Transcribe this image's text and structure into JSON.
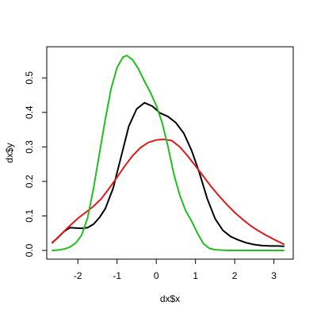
{
  "chart_data": {
    "type": "line",
    "title": "",
    "xlabel": "dx$x",
    "ylabel": "dx$y",
    "xlim": [
      -2.55,
      3.25
    ],
    "ylim": [
      0,
      0.565
    ],
    "x_ticks": [
      -2,
      -1,
      0,
      1,
      2,
      3
    ],
    "y_ticks": [
      0.0,
      0.1,
      0.2,
      0.3,
      0.4,
      0.5
    ],
    "x_tick_labels": [
      "-2",
      "-1",
      "0",
      "1",
      "2",
      "3"
    ],
    "y_tick_labels": [
      "0.0",
      "0.1",
      "0.2",
      "0.3",
      "0.4",
      "0.5"
    ],
    "grid": false,
    "series": [
      {
        "color": "#000000",
        "points": [
          [
            -2.65,
            0.023
          ],
          [
            -2.5,
            0.038
          ],
          [
            -2.35,
            0.055
          ],
          [
            -2.2,
            0.066
          ],
          [
            -2.05,
            0.065
          ],
          [
            -1.9,
            0.064
          ],
          [
            -1.75,
            0.066
          ],
          [
            -1.6,
            0.076
          ],
          [
            -1.45,
            0.095
          ],
          [
            -1.3,
            0.121
          ],
          [
            -1.1,
            0.18
          ],
          [
            -0.9,
            0.27
          ],
          [
            -0.7,
            0.36
          ],
          [
            -0.5,
            0.41
          ],
          [
            -0.3,
            0.428
          ],
          [
            -0.1,
            0.418
          ],
          [
            0.1,
            0.398
          ],
          [
            0.3,
            0.388
          ],
          [
            0.5,
            0.37
          ],
          [
            0.7,
            0.34
          ],
          [
            0.9,
            0.29
          ],
          [
            1.1,
            0.225
          ],
          [
            1.3,
            0.15
          ],
          [
            1.5,
            0.092
          ],
          [
            1.7,
            0.058
          ],
          [
            1.9,
            0.04
          ],
          [
            2.1,
            0.03
          ],
          [
            2.3,
            0.022
          ],
          [
            2.5,
            0.017
          ],
          [
            2.7,
            0.014
          ],
          [
            2.9,
            0.013
          ],
          [
            3.1,
            0.013
          ],
          [
            3.25,
            0.012
          ]
        ]
      },
      {
        "color": "#e01a1a",
        "points": [
          [
            -2.65,
            0.022
          ],
          [
            -2.4,
            0.05
          ],
          [
            -2.2,
            0.072
          ],
          [
            -2.0,
            0.093
          ],
          [
            -1.8,
            0.11
          ],
          [
            -1.6,
            0.128
          ],
          [
            -1.4,
            0.15
          ],
          [
            -1.2,
            0.18
          ],
          [
            -1.0,
            0.212
          ],
          [
            -0.8,
            0.245
          ],
          [
            -0.6,
            0.275
          ],
          [
            -0.4,
            0.298
          ],
          [
            -0.2,
            0.313
          ],
          [
            0.0,
            0.32
          ],
          [
            0.2,
            0.322
          ],
          [
            0.4,
            0.318
          ],
          [
            0.6,
            0.3
          ],
          [
            0.8,
            0.274
          ],
          [
            1.0,
            0.245
          ],
          [
            1.2,
            0.215
          ],
          [
            1.4,
            0.185
          ],
          [
            1.6,
            0.158
          ],
          [
            1.8,
            0.133
          ],
          [
            2.0,
            0.11
          ],
          [
            2.2,
            0.09
          ],
          [
            2.4,
            0.072
          ],
          [
            2.6,
            0.057
          ],
          [
            2.8,
            0.044
          ],
          [
            3.0,
            0.032
          ],
          [
            3.25,
            0.018
          ]
        ]
      },
      {
        "color": "#1fbf1f",
        "points": [
          [
            -2.65,
            0.0
          ],
          [
            -2.5,
            0.001
          ],
          [
            -2.35,
            0.004
          ],
          [
            -2.2,
            0.01
          ],
          [
            -2.05,
            0.022
          ],
          [
            -1.9,
            0.045
          ],
          [
            -1.75,
            0.095
          ],
          [
            -1.6,
            0.18
          ],
          [
            -1.45,
            0.28
          ],
          [
            -1.3,
            0.38
          ],
          [
            -1.15,
            0.47
          ],
          [
            -1.0,
            0.53
          ],
          [
            -0.85,
            0.56
          ],
          [
            -0.75,
            0.565
          ],
          [
            -0.6,
            0.552
          ],
          [
            -0.45,
            0.525
          ],
          [
            -0.3,
            0.49
          ],
          [
            -0.15,
            0.458
          ],
          [
            0.0,
            0.42
          ],
          [
            0.15,
            0.37
          ],
          [
            0.3,
            0.3
          ],
          [
            0.45,
            0.22
          ],
          [
            0.6,
            0.16
          ],
          [
            0.75,
            0.115
          ],
          [
            0.9,
            0.085
          ],
          [
            1.05,
            0.05
          ],
          [
            1.2,
            0.02
          ],
          [
            1.35,
            0.006
          ],
          [
            1.5,
            0.002
          ],
          [
            1.8,
            0.0
          ],
          [
            2.2,
            0.0
          ],
          [
            2.6,
            0.0
          ],
          [
            3.0,
            0.0
          ],
          [
            3.25,
            0.0
          ]
        ]
      }
    ]
  }
}
